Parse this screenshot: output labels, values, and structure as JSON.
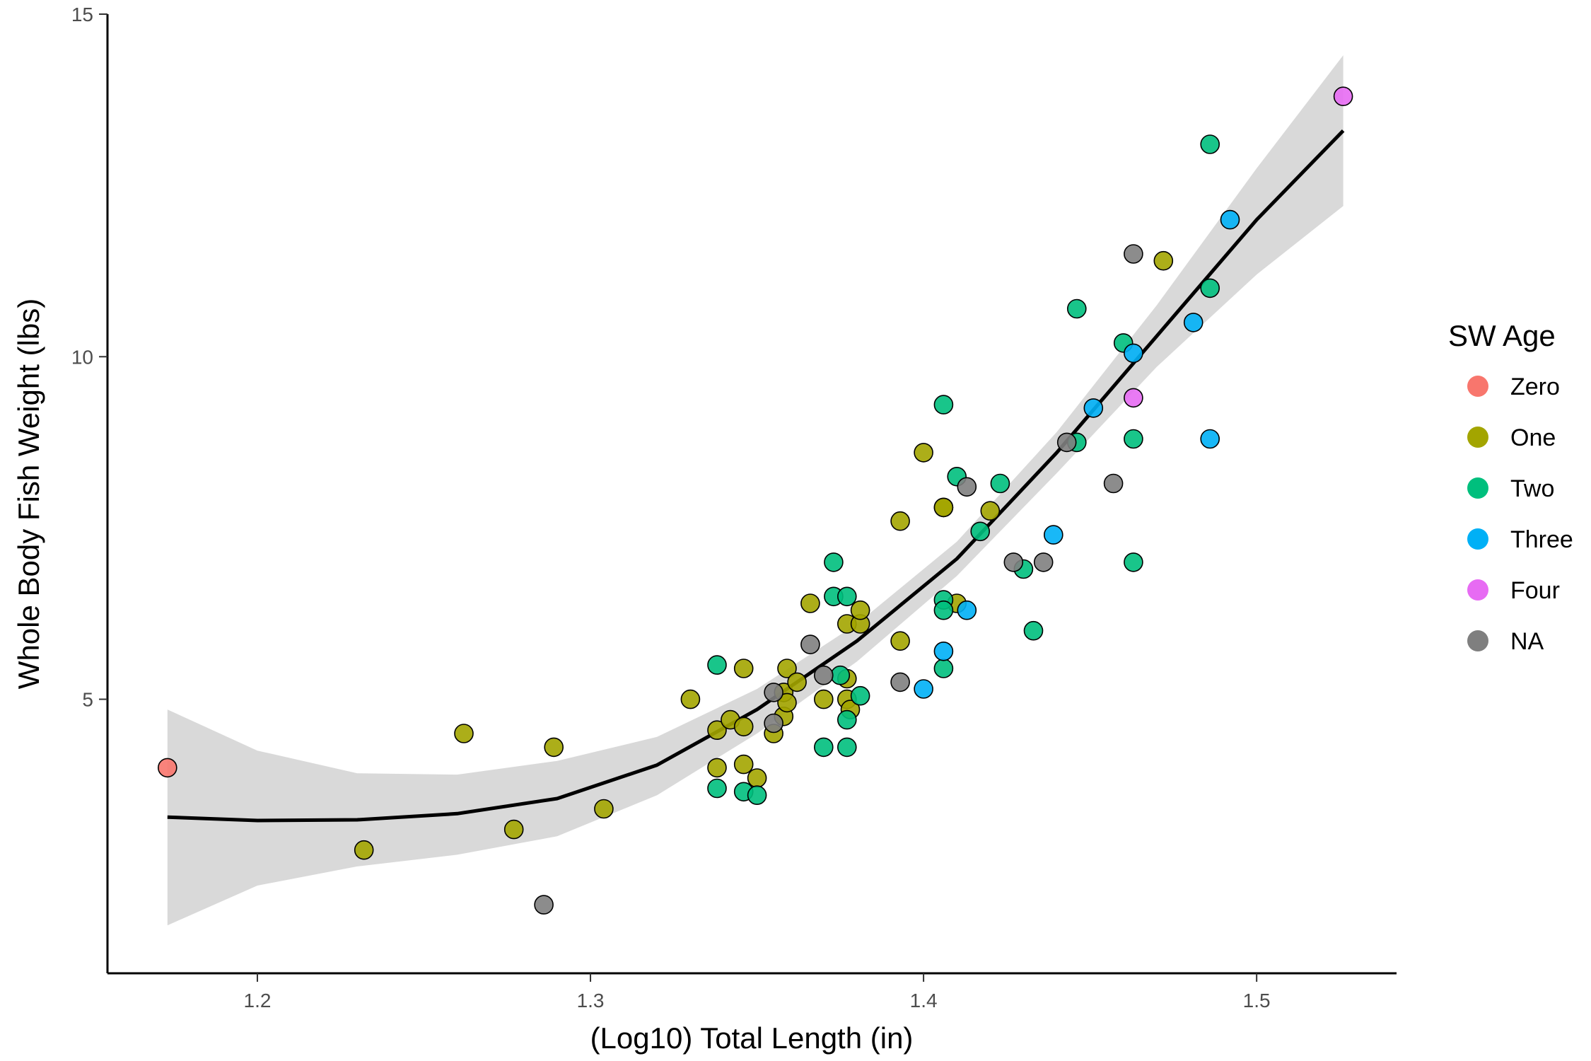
{
  "chart_data": {
    "type": "scatter",
    "xlabel": "(Log10) Total Length (in)",
    "ylabel": "Whole Body Fish Weight (lbs)",
    "xlim": [
      1.155,
      1.542
    ],
    "ylim": [
      1.0,
      15.0
    ],
    "x_ticks": [
      1.2,
      1.3,
      1.4,
      1.5
    ],
    "x_tick_labels": [
      "1.2",
      "1.3",
      "1.4",
      "1.5"
    ],
    "y_ticks": [
      5,
      10,
      15
    ],
    "y_tick_labels": [
      "5",
      "10",
      "15"
    ],
    "grid": false,
    "legend": {
      "title": "SW Age",
      "placement": "right",
      "entries": [
        {
          "name": "Zero",
          "color": "#F8766D"
        },
        {
          "name": "One",
          "color": "#A3A500"
        },
        {
          "name": "Two",
          "color": "#00BF7D"
        },
        {
          "name": "Three",
          "color": "#00B0F6"
        },
        {
          "name": "Four",
          "color": "#E76BF3"
        },
        {
          "name": "NA",
          "color": "#7F7F7F"
        }
      ]
    },
    "series": [
      {
        "name": "Zero",
        "color": "#F8766D",
        "points": [
          [
            1.173,
            4.0
          ]
        ]
      },
      {
        "name": "One",
        "color": "#A3A500",
        "points": [
          [
            1.232,
            2.8
          ],
          [
            1.262,
            4.5
          ],
          [
            1.277,
            3.1
          ],
          [
            1.289,
            4.3
          ],
          [
            1.304,
            3.4
          ],
          [
            1.33,
            5.0
          ],
          [
            1.338,
            4.55
          ],
          [
            1.338,
            4.0
          ],
          [
            1.342,
            4.7
          ],
          [
            1.346,
            5.45
          ],
          [
            1.346,
            4.6
          ],
          [
            1.346,
            4.05
          ],
          [
            1.35,
            3.85
          ],
          [
            1.355,
            4.5
          ],
          [
            1.358,
            5.1
          ],
          [
            1.358,
            4.75
          ],
          [
            1.359,
            4.95
          ],
          [
            1.359,
            5.45
          ],
          [
            1.362,
            5.25
          ],
          [
            1.366,
            6.4
          ],
          [
            1.37,
            5.0
          ],
          [
            1.377,
            5.3
          ],
          [
            1.377,
            6.1
          ],
          [
            1.377,
            5.0
          ],
          [
            1.378,
            4.85
          ],
          [
            1.381,
            6.1
          ],
          [
            1.381,
            6.3
          ],
          [
            1.393,
            7.6
          ],
          [
            1.393,
            5.85
          ],
          [
            1.4,
            8.6
          ],
          [
            1.406,
            7.8
          ],
          [
            1.406,
            7.8
          ],
          [
            1.41,
            6.4
          ],
          [
            1.42,
            7.75
          ],
          [
            1.472,
            11.4
          ]
        ]
      },
      {
        "name": "Two",
        "color": "#00BF7D",
        "points": [
          [
            1.338,
            5.5
          ],
          [
            1.338,
            3.7
          ],
          [
            1.346,
            3.65
          ],
          [
            1.35,
            3.6
          ],
          [
            1.37,
            4.3
          ],
          [
            1.373,
            7.0
          ],
          [
            1.373,
            6.5
          ],
          [
            1.375,
            5.35
          ],
          [
            1.377,
            6.5
          ],
          [
            1.377,
            4.7
          ],
          [
            1.377,
            4.3
          ],
          [
            1.381,
            5.05
          ],
          [
            1.406,
            9.3
          ],
          [
            1.406,
            6.45
          ],
          [
            1.406,
            6.3
          ],
          [
            1.406,
            5.45
          ],
          [
            1.41,
            8.25
          ],
          [
            1.417,
            7.45
          ],
          [
            1.423,
            8.15
          ],
          [
            1.43,
            6.9
          ],
          [
            1.433,
            6.0
          ],
          [
            1.446,
            8.75
          ],
          [
            1.446,
            10.7
          ],
          [
            1.46,
            10.2
          ],
          [
            1.463,
            8.8
          ],
          [
            1.463,
            7.0
          ],
          [
            1.486,
            13.1
          ],
          [
            1.486,
            11.0
          ]
        ]
      },
      {
        "name": "Three",
        "color": "#00B0F6",
        "points": [
          [
            1.4,
            5.15
          ],
          [
            1.406,
            5.7
          ],
          [
            1.413,
            6.3
          ],
          [
            1.439,
            7.4
          ],
          [
            1.451,
            9.25
          ],
          [
            1.463,
            10.05
          ],
          [
            1.481,
            10.5
          ],
          [
            1.486,
            8.8
          ],
          [
            1.492,
            12.0
          ]
        ]
      },
      {
        "name": "Four",
        "color": "#E76BF3",
        "points": [
          [
            1.463,
            9.4
          ],
          [
            1.526,
            13.8
          ]
        ]
      },
      {
        "name": "NA",
        "color": "#7F7F7F",
        "points": [
          [
            1.286,
            2.0
          ],
          [
            1.355,
            5.1
          ],
          [
            1.355,
            4.65
          ],
          [
            1.366,
            5.8
          ],
          [
            1.37,
            5.35
          ],
          [
            1.393,
            5.25
          ],
          [
            1.413,
            8.1
          ],
          [
            1.427,
            7.0
          ],
          [
            1.436,
            7.0
          ],
          [
            1.443,
            8.75
          ],
          [
            1.457,
            8.15
          ],
          [
            1.463,
            11.5
          ]
        ]
      }
    ],
    "fit": {
      "x": [
        1.173,
        1.2,
        1.23,
        1.26,
        1.29,
        1.32,
        1.35,
        1.38,
        1.41,
        1.44,
        1.47,
        1.5,
        1.526
      ],
      "y": [
        3.28,
        3.23,
        3.24,
        3.33,
        3.55,
        4.04,
        4.85,
        5.85,
        7.05,
        8.6,
        10.3,
        12.0,
        13.3
      ],
      "ci_lower": [
        1.7,
        2.28,
        2.56,
        2.73,
        3.0,
        3.6,
        4.5,
        5.55,
        6.8,
        8.3,
        9.85,
        11.2,
        12.2
      ],
      "ci_upper": [
        4.85,
        4.25,
        3.92,
        3.9,
        4.1,
        4.45,
        5.15,
        6.1,
        7.3,
        8.9,
        10.75,
        12.75,
        14.4
      ]
    }
  }
}
